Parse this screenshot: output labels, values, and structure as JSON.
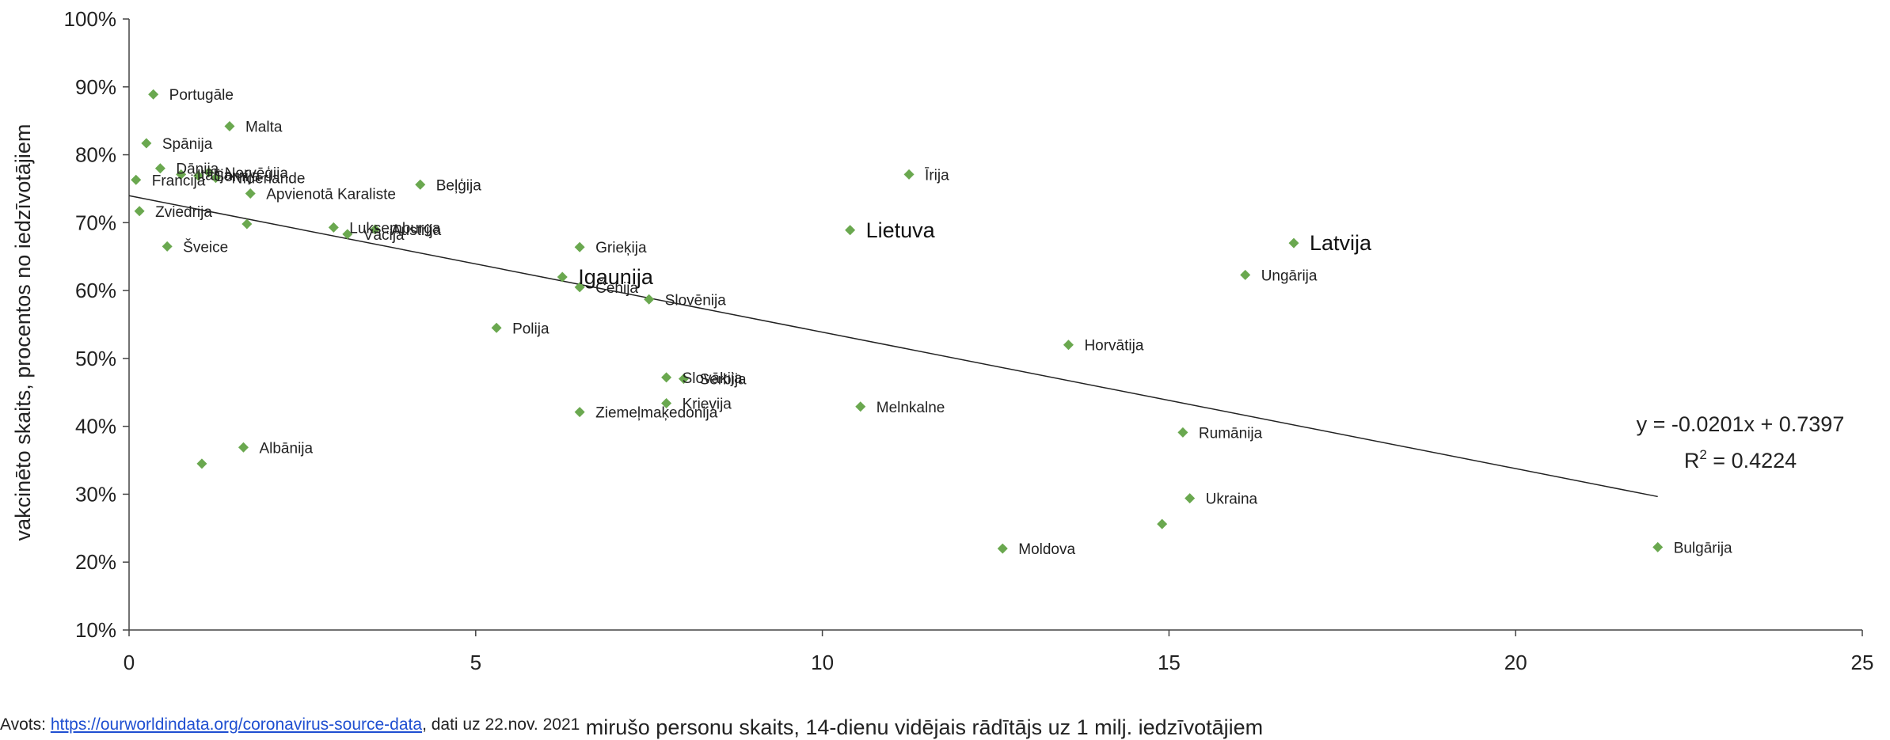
{
  "chart_data": {
    "type": "scatter",
    "xlabel": "mirušo personu skaits, 14-dienu vidējais rādītājs uz 1 milj. iedzīvotājiem",
    "ylabel": "vakcinēto skaits, procentos no iedzīvotājiem",
    "xlim": [
      0,
      25
    ],
    "ylim": [
      0.1,
      1.0
    ],
    "x_ticks": [
      "0",
      "5",
      "10",
      "15",
      "20",
      "25"
    ],
    "y_ticks": [
      "10%",
      "20%",
      "30%",
      "40%",
      "50%",
      "60%",
      "70%",
      "80%",
      "90%",
      "100%"
    ],
    "grid": false,
    "marker_color": "#6aa84f",
    "points": [
      {
        "label": "Portugāle",
        "x": 0.35,
        "y": 0.889
      },
      {
        "label": "Malta",
        "x": 1.45,
        "y": 0.842
      },
      {
        "label": "Spānija",
        "x": 0.25,
        "y": 0.817
      },
      {
        "label": "Dānija",
        "x": 0.45,
        "y": 0.78
      },
      {
        "label": "Itālija",
        "x": 0.75,
        "y": 0.771
      },
      {
        "label": "Somija",
        "x": 1.0,
        "y": 0.769
      },
      {
        "label": "Norvēģija",
        "x": 1.15,
        "y": 0.774
      },
      {
        "label": "Nīderlande",
        "x": 1.25,
        "y": 0.766
      },
      {
        "label": "Francija",
        "x": 0.1,
        "y": 0.763
      },
      {
        "label": "Apvienotā Karaliste",
        "x": 1.75,
        "y": 0.743
      },
      {
        "label": "Beļģija",
        "x": 4.2,
        "y": 0.756
      },
      {
        "label": "Zviedrija",
        "x": 0.15,
        "y": 0.717
      },
      {
        "label": "",
        "x": 1.7,
        "y": 0.698
      },
      {
        "label": "Šveice",
        "x": 0.55,
        "y": 0.665
      },
      {
        "label": "Luksemburga",
        "x": 2.95,
        "y": 0.693
      },
      {
        "label": "Vācija",
        "x": 3.15,
        "y": 0.683
      },
      {
        "label": "Austrija",
        "x": 3.55,
        "y": 0.69
      },
      {
        "label": "Grieķija",
        "x": 6.5,
        "y": 0.664
      },
      {
        "label": "Igaunija",
        "x": 6.25,
        "y": 0.62,
        "bold": true
      },
      {
        "label": "Čehija",
        "x": 6.5,
        "y": 0.605
      },
      {
        "label": "Slovēnija",
        "x": 7.5,
        "y": 0.587
      },
      {
        "label": "Polija",
        "x": 5.3,
        "y": 0.545
      },
      {
        "label": "Slovākija",
        "x": 7.75,
        "y": 0.472
      },
      {
        "label": "Serbija",
        "x": 8.0,
        "y": 0.47
      },
      {
        "label": "Krievija",
        "x": 7.75,
        "y": 0.434
      },
      {
        "label": "Ziemeļmaķedonija",
        "x": 6.5,
        "y": 0.421
      },
      {
        "label": "Albānija",
        "x": 1.65,
        "y": 0.369
      },
      {
        "label": "",
        "x": 1.05,
        "y": 0.345
      },
      {
        "label": "Lietuva",
        "x": 10.4,
        "y": 0.689,
        "bold": true
      },
      {
        "label": "Īrija",
        "x": 11.25,
        "y": 0.771
      },
      {
        "label": "Melnkalne",
        "x": 10.55,
        "y": 0.429
      },
      {
        "label": "Horvātija",
        "x": 13.55,
        "y": 0.52
      },
      {
        "label": "Moldova",
        "x": 12.6,
        "y": 0.22
      },
      {
        "label": "Latvija",
        "x": 16.8,
        "y": 0.67,
        "bold": true
      },
      {
        "label": "Ungārija",
        "x": 16.1,
        "y": 0.623
      },
      {
        "label": "Rumānija",
        "x": 15.2,
        "y": 0.391
      },
      {
        "label": "Ukraina",
        "x": 15.3,
        "y": 0.294
      },
      {
        "label": "",
        "x": 14.9,
        "y": 0.256
      },
      {
        "label": "Bulgārija",
        "x": 22.05,
        "y": 0.222
      }
    ],
    "trendline": {
      "slope": -0.0201,
      "intercept": 0.7397,
      "x_range": [
        0,
        22.05
      ],
      "color": "#222222"
    },
    "annotations": [
      "y = -0.0201x + 0.7397",
      "R² = 0.4224"
    ]
  },
  "source": {
    "prefix": "Avots: ",
    "link_text": "https://ourworldindata.org/coronavirus-source-data",
    "suffix": ", dati uz 22.nov. 2021"
  }
}
